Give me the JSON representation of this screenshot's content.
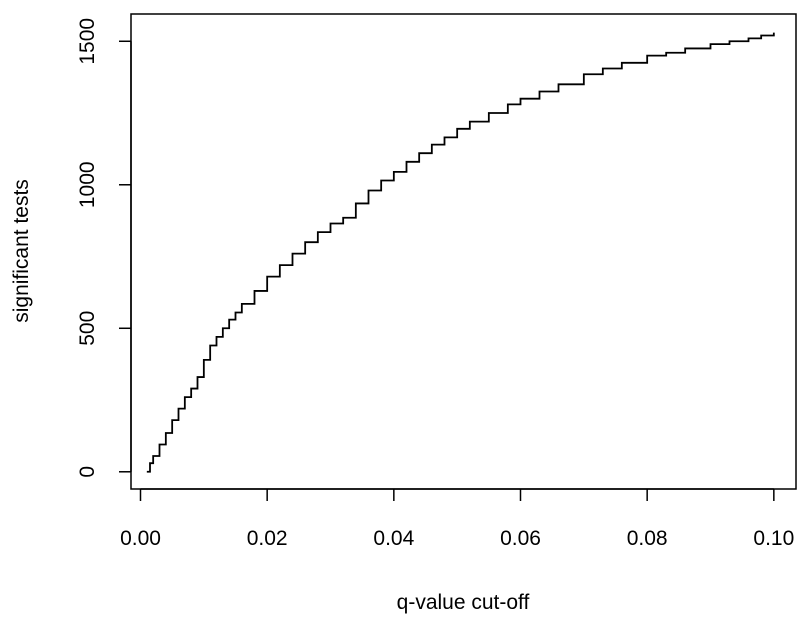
{
  "chart_data": {
    "type": "line",
    "title": "",
    "xlabel": "q-value cut-off",
    "ylabel": "significant tests",
    "xlim": [
      -0.0015,
      0.1035
    ],
    "ylim": [
      -60,
      1595
    ],
    "xticks": [
      0.0,
      0.02,
      0.04,
      0.06,
      0.08,
      0.1
    ],
    "xtick_labels": [
      "0.00",
      "0.02",
      "0.04",
      "0.06",
      "0.08",
      "0.10"
    ],
    "yticks": [
      0,
      500,
      1000,
      1500
    ],
    "ytick_labels": [
      "0",
      "500",
      "1000",
      "1500"
    ],
    "grid": false,
    "legend": "none",
    "line_color": "#000000",
    "series": [
      {
        "x": [
          0.001,
          0.0015,
          0.002,
          0.003,
          0.004,
          0.005,
          0.006,
          0.007,
          0.008,
          0.009,
          0.01,
          0.011,
          0.012,
          0.013,
          0.014,
          0.015,
          0.016,
          0.018,
          0.02,
          0.022,
          0.024,
          0.026,
          0.028,
          0.03,
          0.032,
          0.034,
          0.036,
          0.038,
          0.04,
          0.042,
          0.044,
          0.046,
          0.048,
          0.05,
          0.052,
          0.055,
          0.058,
          0.06,
          0.063,
          0.066,
          0.07,
          0.073,
          0.076,
          0.08,
          0.083,
          0.086,
          0.09,
          0.093,
          0.096,
          0.098,
          0.1
        ],
        "y": [
          0,
          30,
          55,
          95,
          135,
          180,
          220,
          260,
          290,
          330,
          390,
          440,
          470,
          500,
          530,
          555,
          585,
          630,
          680,
          720,
          760,
          800,
          835,
          865,
          885,
          935,
          980,
          1015,
          1045,
          1080,
          1110,
          1140,
          1165,
          1195,
          1220,
          1250,
          1280,
          1300,
          1325,
          1350,
          1385,
          1405,
          1425,
          1450,
          1460,
          1475,
          1490,
          1500,
          1510,
          1520,
          1530
        ]
      }
    ]
  }
}
